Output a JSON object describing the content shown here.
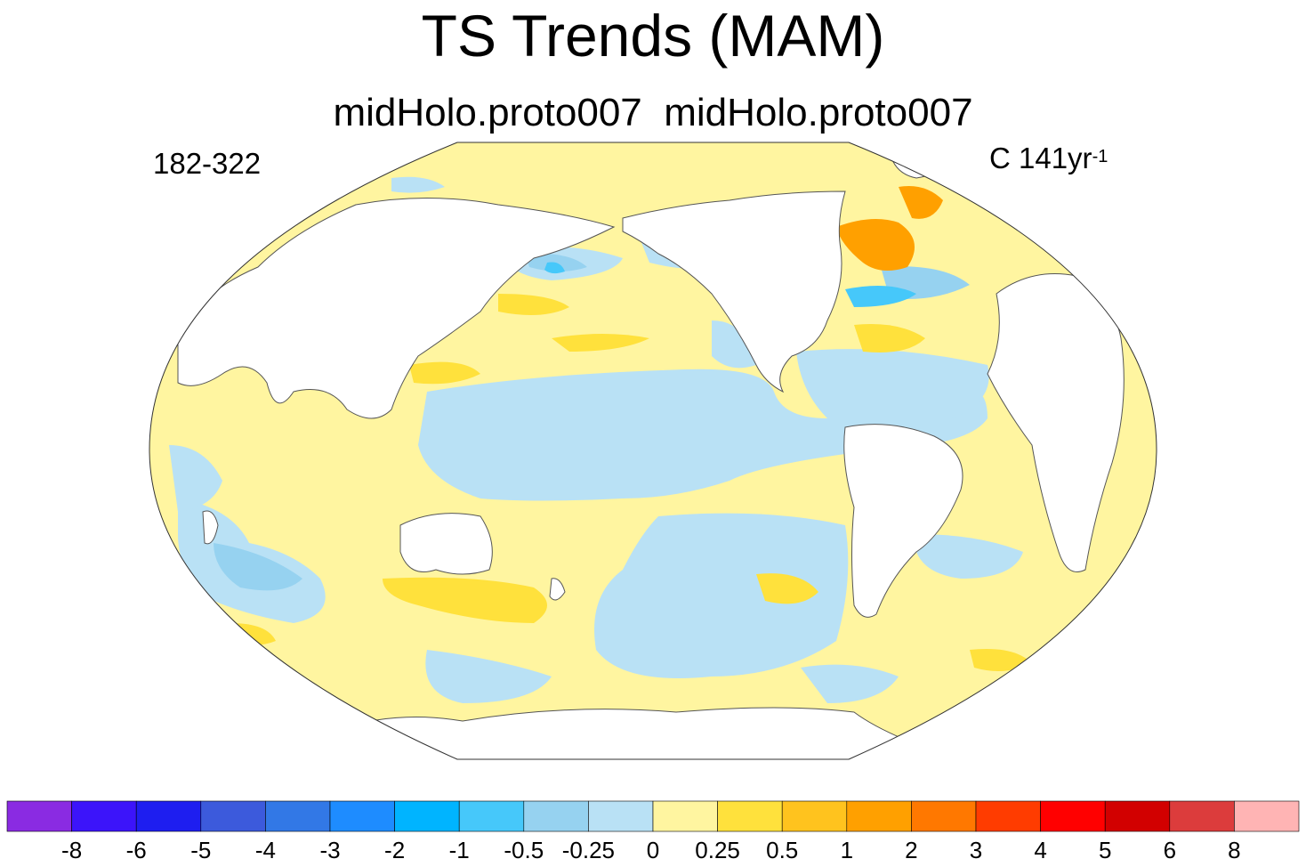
{
  "title": "TS Trends (MAM)",
  "subtitle": "midHolo.proto007  midHolo.proto007",
  "left_label": "182-322",
  "right_label": {
    "text": "C 141yr",
    "superscript": "-1"
  },
  "colorbar": {
    "colors": [
      "#8a2be2",
      "#3c14fa",
      "#1e1ef0",
      "#3c5adc",
      "#3278e6",
      "#1e8cff",
      "#00b4ff",
      "#46c8fa",
      "#96d2f0",
      "#b9e1f5",
      "#fff5a0",
      "#ffe13c",
      "#ffc31e",
      "#ffa000",
      "#ff7800",
      "#ff3c00",
      "#ff0000",
      "#d20000",
      "#dc3c3c",
      "#ffb4b4"
    ],
    "labels": [
      "-8",
      "-6",
      "-5",
      "-4",
      "-3",
      "-2",
      "-1",
      "-0.5",
      "-0.25",
      "0",
      "0.25",
      "0.5",
      "1",
      "2",
      "3",
      "4",
      "5",
      "6",
      "8"
    ]
  },
  "map": {
    "projection": "robinson",
    "ocean_base_color": "#fff5a0",
    "land_color": "#ffffff",
    "coast_color": "#555555"
  }
}
